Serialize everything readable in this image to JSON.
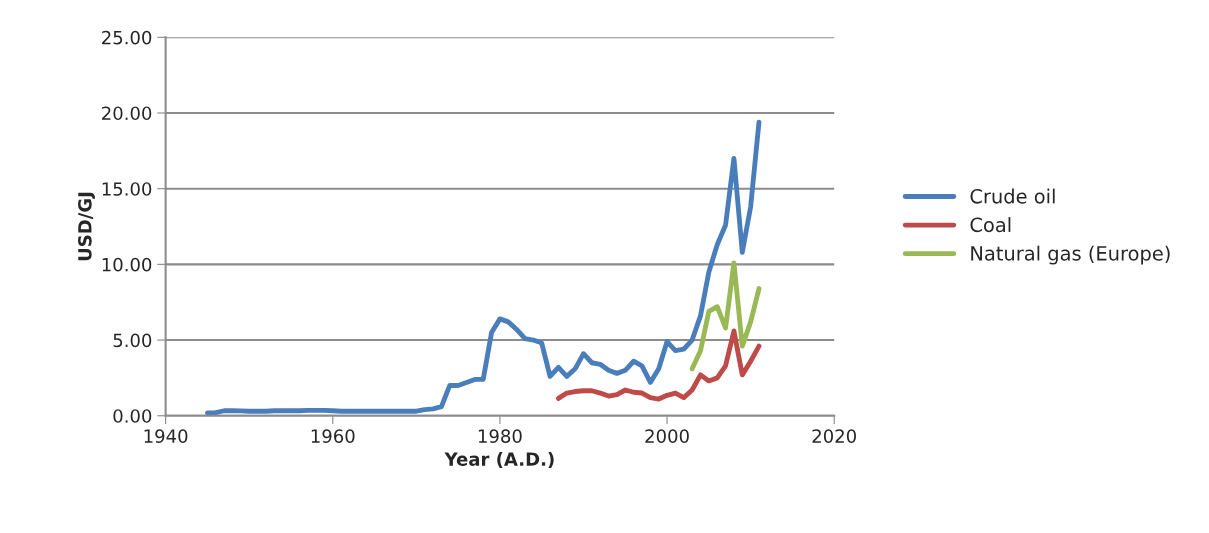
{
  "chart_data": {
    "type": "line",
    "xlabel": "Year (A.D.)",
    "ylabel": "USD/GJ",
    "xlim": [
      1940,
      2020
    ],
    "xticks": [
      1940,
      1960,
      1980,
      2000,
      2020
    ],
    "ylim": [
      0,
      25
    ],
    "yticks": [
      {
        "value": 0,
        "label": "0.00"
      },
      {
        "value": 5,
        "label": "5.00"
      },
      {
        "value": 10,
        "label": "10.00"
      },
      {
        "value": 15,
        "label": "15.00"
      },
      {
        "value": 20,
        "label": "20.00"
      },
      {
        "value": 25,
        "label": "25.00"
      }
    ],
    "grid": "y",
    "legend": "right",
    "marker": "none",
    "line_style": "solid",
    "series": [
      {
        "name": "Crude oil",
        "color": "#4a7ebb",
        "x": [
          1945,
          1946,
          1947,
          1948,
          1949,
          1950,
          1951,
          1952,
          1953,
          1954,
          1955,
          1956,
          1957,
          1958,
          1959,
          1960,
          1961,
          1962,
          1963,
          1964,
          1965,
          1966,
          1967,
          1968,
          1969,
          1970,
          1971,
          1972,
          1973,
          1974,
          1975,
          1976,
          1977,
          1978,
          1979,
          1980,
          1981,
          1982,
          1983,
          1984,
          1985,
          1986,
          1987,
          1988,
          1989,
          1990,
          1991,
          1992,
          1993,
          1994,
          1995,
          1996,
          1997,
          1998,
          1999,
          2000,
          2001,
          2002,
          2003,
          2004,
          2005,
          2006,
          2007,
          2008,
          2009,
          2010,
          2011
        ],
        "values": [
          0.18,
          0.2,
          0.33,
          0.33,
          0.32,
          0.3,
          0.3,
          0.3,
          0.33,
          0.33,
          0.33,
          0.33,
          0.35,
          0.35,
          0.35,
          0.33,
          0.3,
          0.3,
          0.3,
          0.3,
          0.3,
          0.3,
          0.3,
          0.3,
          0.3,
          0.3,
          0.4,
          0.45,
          0.6,
          2.0,
          2.0,
          2.2,
          2.4,
          2.4,
          5.5,
          6.4,
          6.2,
          5.7,
          5.1,
          5.0,
          4.8,
          2.6,
          3.2,
          2.6,
          3.1,
          4.1,
          3.5,
          3.4,
          3.0,
          2.8,
          3.0,
          3.6,
          3.3,
          2.2,
          3.1,
          4.9,
          4.3,
          4.4,
          5.0,
          6.6,
          9.5,
          11.3,
          12.6,
          17.0,
          10.8,
          13.8,
          19.4
        ]
      },
      {
        "name": "Coal",
        "color": "#be4b48",
        "x": [
          1987,
          1988,
          1989,
          1990,
          1991,
          1992,
          1993,
          1994,
          1995,
          1996,
          1997,
          1998,
          1999,
          2000,
          2001,
          2002,
          2003,
          2004,
          2005,
          2006,
          2007,
          2008,
          2009,
          2010,
          2011
        ],
        "values": [
          1.15,
          1.5,
          1.6,
          1.65,
          1.65,
          1.5,
          1.3,
          1.4,
          1.7,
          1.55,
          1.5,
          1.2,
          1.1,
          1.35,
          1.5,
          1.2,
          1.7,
          2.7,
          2.3,
          2.5,
          3.3,
          5.6,
          2.7,
          3.6,
          4.6
        ]
      },
      {
        "name": "Natural gas (Europe)",
        "color": "#98b954",
        "x": [
          2003,
          2004,
          2005,
          2006,
          2007,
          2008,
          2009,
          2010,
          2011
        ],
        "values": [
          3.1,
          4.3,
          6.9,
          7.2,
          5.8,
          10.1,
          4.6,
          6.2,
          8.4
        ]
      }
    ]
  }
}
